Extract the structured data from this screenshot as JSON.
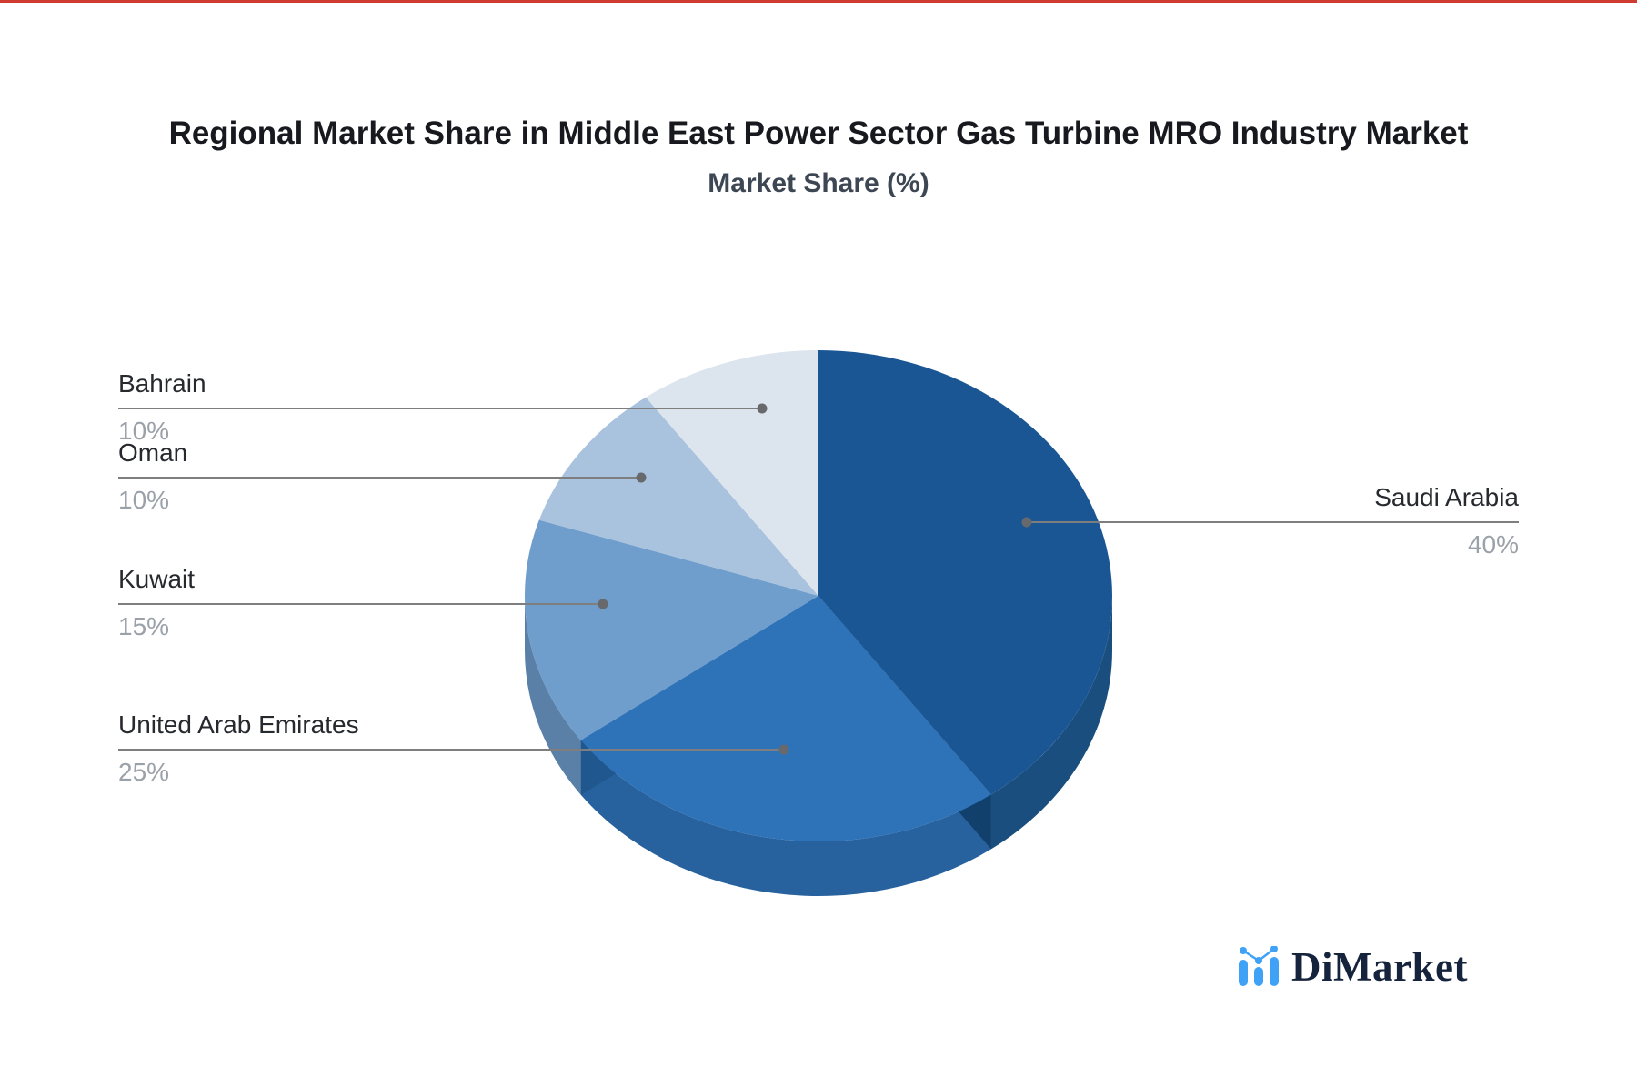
{
  "page": {
    "top_edge_color": "#cf3a31",
    "background": "#ffffff"
  },
  "chart_data": {
    "type": "pie",
    "projection": "3d",
    "title": "Regional Market Share in Middle East Power Sector Gas Turbine MRO Industry Market",
    "subtitle": "Market Share (%)",
    "unit": "%",
    "start_angle_deg": -90,
    "direction": "clockwise",
    "legend": "callout-labels",
    "slices": [
      {
        "label": "Saudi Arabia",
        "value": 40,
        "value_text": "40%",
        "color": "#1A5693",
        "side_color": "#1A4E7F"
      },
      {
        "label": "United Arab Emirates",
        "value": 25,
        "value_text": "25%",
        "color": "#2E72B8",
        "side_color": "#27619E",
        "wall_color": "#12406D"
      },
      {
        "label": "Kuwait",
        "value": 15,
        "value_text": "15%",
        "color": "#6F9ECD",
        "side_color": "#5B80A8",
        "wall_color": "#20578F"
      },
      {
        "label": "Oman",
        "value": 10,
        "value_text": "10%",
        "color": "#A9C2DE",
        "side_color": "#8FA9C4"
      },
      {
        "label": "Bahrain",
        "value": 10,
        "value_text": "10%",
        "color": "#DCE4EE",
        "side_color": "#B9C6D6"
      }
    ],
    "connector_color": "#7e7e7e",
    "connector_dot_color": "#67696c"
  },
  "branding": {
    "logo_text": "DiMarket",
    "logo_text_color": "#16233C",
    "logo_icon_color": "#3FA2F7"
  }
}
